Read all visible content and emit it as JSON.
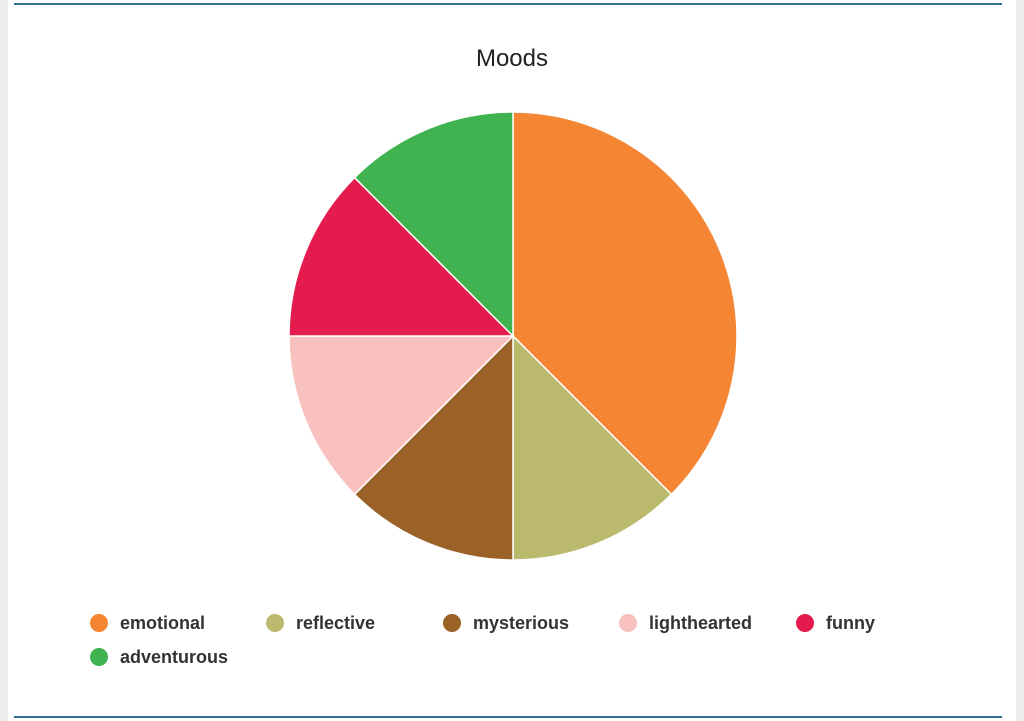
{
  "chart_data": {
    "type": "pie",
    "title": "Moods",
    "legend_position": "bottom",
    "slices": [
      {
        "label": "emotional",
        "value": 37.5,
        "color": "#f48533"
      },
      {
        "label": "reflective",
        "value": 12.5,
        "color": "#bbb96e"
      },
      {
        "label": "mysterious",
        "value": 12.5,
        "color": "#9a6227"
      },
      {
        "label": "lighthearted",
        "value": 12.5,
        "color": "#f9c0c0"
      },
      {
        "label": "funny",
        "value": 12.5,
        "color": "#e41b4d"
      },
      {
        "label": "adventurous",
        "value": 12.5,
        "color": "#3eb34f"
      }
    ]
  }
}
